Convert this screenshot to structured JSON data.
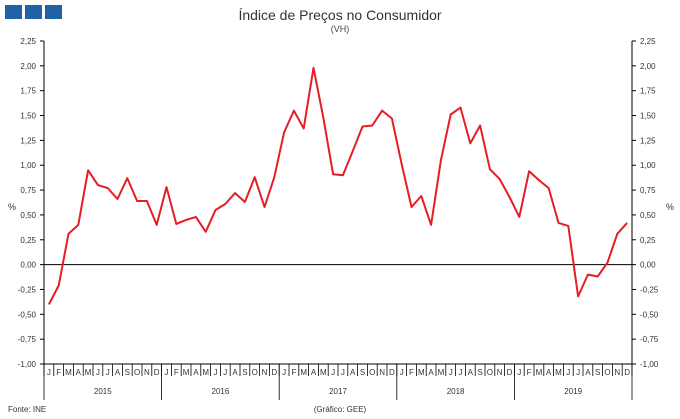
{
  "header": {
    "title": "Índice de Preços no Consumidor",
    "subtitle": "(VH)",
    "brand_color": "#1f63a6"
  },
  "footer": {
    "source": "Fonte: INE",
    "credit": "(Gráfico: GEE)"
  },
  "chart_data": {
    "type": "line",
    "title": "Índice de Preços no Consumidor",
    "subtitle": "(VH)",
    "ylabel": "%",
    "ylabel_right": "%",
    "ylim": [
      -1.0,
      2.25
    ],
    "yticks": [
      "-1,00",
      "-0,75",
      "-0,50",
      "-0,25",
      "0,00",
      "0,25",
      "0,50",
      "0,75",
      "1,00",
      "1,25",
      "1,50",
      "1,75",
      "2,00",
      "2,25"
    ],
    "grid": false,
    "line_color": "#e31e24",
    "month_labels": [
      "J",
      "F",
      "M",
      "A",
      "M",
      "J",
      "J",
      "A",
      "S",
      "O",
      "N",
      "D"
    ],
    "years": [
      "2015",
      "2016",
      "2017",
      "2018",
      "2019"
    ],
    "series": [
      {
        "values": [
          -0.4,
          -0.21,
          0.31,
          0.4,
          0.95,
          0.8,
          0.77,
          0.66,
          0.87,
          0.64,
          0.64,
          0.4,
          0.78,
          0.41,
          0.45,
          0.48,
          0.33,
          0.55,
          0.61,
          0.72,
          0.63,
          0.88,
          0.58,
          0.88,
          1.33,
          1.55,
          1.37,
          1.98,
          1.48,
          0.91,
          0.9,
          1.14,
          1.39,
          1.4,
          1.55,
          1.47,
          1.01,
          0.58,
          0.69,
          0.4,
          1.05,
          1.51,
          1.58,
          1.22,
          1.4,
          0.96,
          0.86,
          0.68,
          0.48,
          0.94,
          0.85,
          0.77,
          0.42,
          0.39,
          -0.32,
          -0.1,
          -0.12,
          0.02,
          0.31,
          0.42
        ]
      }
    ]
  }
}
